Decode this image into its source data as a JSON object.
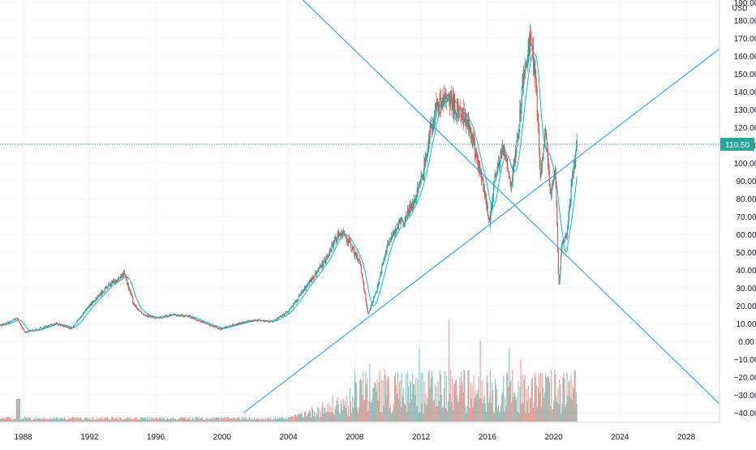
{
  "chart_data": {
    "type": "candlestick",
    "currency_label": "USD",
    "last_price_label": "110.50",
    "last_price": 110.5,
    "ylim": [
      -45,
      190
    ],
    "xlim": [
      1986.6,
      2030
    ],
    "y_ticks": [
      190,
      180,
      170,
      160,
      150,
      140,
      130,
      120,
      110,
      100,
      90,
      80,
      70,
      60,
      50,
      40,
      30,
      20,
      10,
      0,
      -10,
      -20,
      -30,
      -40
    ],
    "y_tick_labels": [
      "190.00",
      "180.00",
      "170.00",
      "160.00",
      "150.00",
      "140.00",
      "130.00",
      "120.00",
      "110.00",
      "100.00",
      "90.00",
      "80.00",
      "70.00",
      "60.00",
      "50.00",
      "40.00",
      "30.00",
      "20.00",
      "10.00",
      "0.00",
      "−10.00",
      "−20.00",
      "−30.00",
      "−40.00"
    ],
    "x_ticks": [
      1988,
      1992,
      1996,
      2000,
      2004,
      2008,
      2012,
      2016,
      2020,
      2024,
      2028
    ],
    "x_tick_labels": [
      "1988",
      "1992",
      "1996",
      "2000",
      "2004",
      "2008",
      "2012",
      "2016",
      "2020",
      "2024",
      "2028"
    ],
    "grid": true,
    "price_series": [
      {
        "x": 1986.6,
        "y": 9
      },
      {
        "x": 1987.0,
        "y": 10
      },
      {
        "x": 1987.6,
        "y": 13
      },
      {
        "x": 1988.1,
        "y": 5
      },
      {
        "x": 1989.0,
        "y": 7
      },
      {
        "x": 1990.0,
        "y": 10
      },
      {
        "x": 1990.9,
        "y": 7
      },
      {
        "x": 1991.5,
        "y": 14
      },
      {
        "x": 1992.0,
        "y": 20
      },
      {
        "x": 1993.0,
        "y": 30
      },
      {
        "x": 1993.8,
        "y": 36
      },
      {
        "x": 1994.1,
        "y": 38
      },
      {
        "x": 1994.7,
        "y": 20
      },
      {
        "x": 1995.3,
        "y": 15
      },
      {
        "x": 1996.0,
        "y": 13
      },
      {
        "x": 1997.0,
        "y": 15
      },
      {
        "x": 1998.0,
        "y": 14
      },
      {
        "x": 1998.5,
        "y": 12
      },
      {
        "x": 1999.0,
        "y": 10
      },
      {
        "x": 1999.9,
        "y": 7
      },
      {
        "x": 2001.0,
        "y": 10
      },
      {
        "x": 2002.0,
        "y": 12
      },
      {
        "x": 2003.0,
        "y": 11
      },
      {
        "x": 2004.0,
        "y": 17
      },
      {
        "x": 2005.0,
        "y": 30
      },
      {
        "x": 2006.0,
        "y": 42
      },
      {
        "x": 2006.9,
        "y": 58
      },
      {
        "x": 2007.3,
        "y": 62
      },
      {
        "x": 2007.8,
        "y": 52
      },
      {
        "x": 2008.3,
        "y": 45
      },
      {
        "x": 2008.8,
        "y": 15
      },
      {
        "x": 2009.3,
        "y": 28
      },
      {
        "x": 2010.0,
        "y": 55
      },
      {
        "x": 2010.6,
        "y": 65
      },
      {
        "x": 2011.0,
        "y": 68
      },
      {
        "x": 2011.6,
        "y": 80
      },
      {
        "x": 2012.0,
        "y": 90
      },
      {
        "x": 2012.6,
        "y": 120
      },
      {
        "x": 2013.0,
        "y": 132
      },
      {
        "x": 2013.6,
        "y": 138
      },
      {
        "x": 2014.2,
        "y": 130
      },
      {
        "x": 2014.8,
        "y": 125
      },
      {
        "x": 2015.3,
        "y": 105
      },
      {
        "x": 2015.8,
        "y": 85
      },
      {
        "x": 2016.1,
        "y": 67
      },
      {
        "x": 2016.5,
        "y": 95
      },
      {
        "x": 2017.0,
        "y": 110
      },
      {
        "x": 2017.4,
        "y": 85
      },
      {
        "x": 2017.9,
        "y": 120
      },
      {
        "x": 2018.2,
        "y": 152
      },
      {
        "x": 2018.6,
        "y": 168
      },
      {
        "x": 2018.9,
        "y": 150
      },
      {
        "x": 2019.2,
        "y": 90
      },
      {
        "x": 2019.5,
        "y": 120
      },
      {
        "x": 2019.8,
        "y": 80
      },
      {
        "x": 2020.1,
        "y": 98
      },
      {
        "x": 2020.3,
        "y": 30
      },
      {
        "x": 2020.5,
        "y": 55
      },
      {
        "x": 2020.8,
        "y": 60
      },
      {
        "x": 2021.1,
        "y": 90
      },
      {
        "x": 2021.4,
        "y": 110.5
      }
    ],
    "trendlines": [
      {
        "x1": 2001.3,
        "y1": -40,
        "x2": 2030,
        "y2": 164
      },
      {
        "x1": 2004.8,
        "y1": 192,
        "x2": 2030,
        "y2": -35
      }
    ],
    "volume": {
      "start_x": 1986.6,
      "end_x": 2021.4,
      "max_label_scale": -40
    }
  }
}
